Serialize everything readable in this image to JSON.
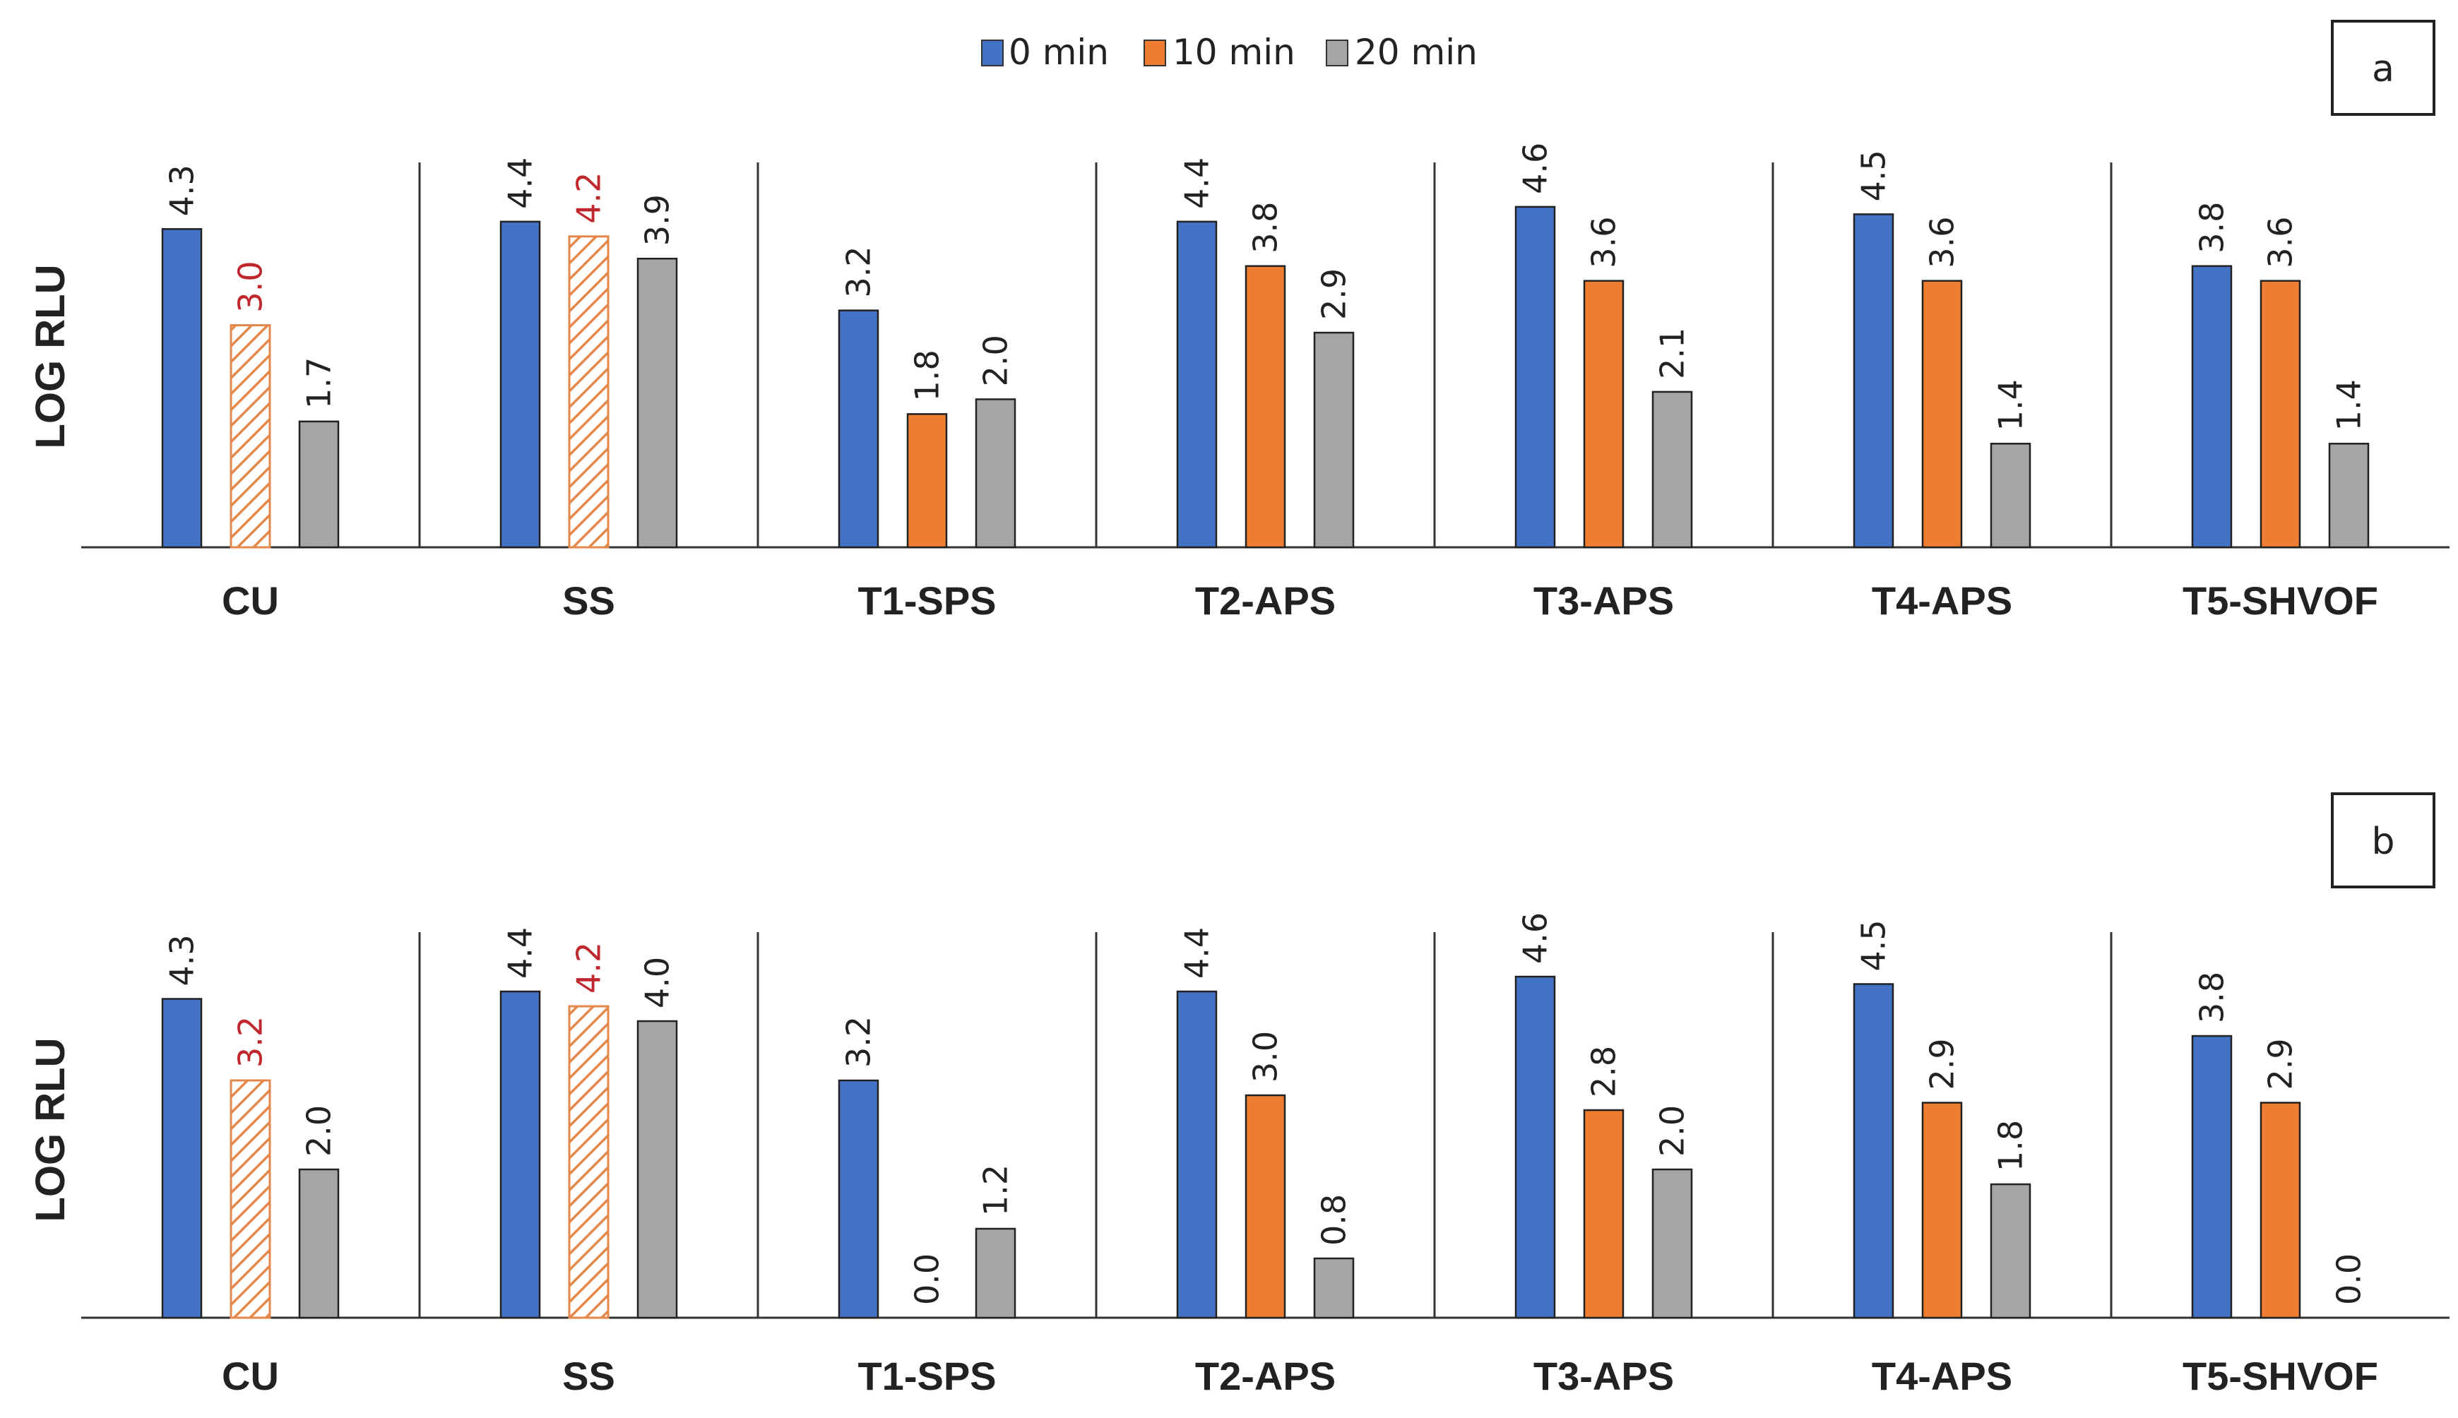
{
  "legend": [
    {
      "label": "0 min",
      "color": "#4472C4"
    },
    {
      "label": "10 min",
      "color": "#ED7D31"
    },
    {
      "label": "20 min",
      "color": "#A5A5A5"
    }
  ],
  "colors": {
    "highlight_label": "#C0272D",
    "hatch": "#E3874A",
    "axis": "#333333",
    "text": "#222222"
  },
  "chart_data": [
    {
      "type": "bar",
      "panel": "a",
      "ylabel": "LOG RLU",
      "ylim": [
        0,
        5.2
      ],
      "categories": [
        "CU",
        "SS",
        "T1-SPS",
        "T2-APS",
        "T3-APS",
        "T4-APS",
        "T5-SHVOF"
      ],
      "series": [
        {
          "name": "0 min",
          "values": [
            4.3,
            4.4,
            3.2,
            4.4,
            4.6,
            4.5,
            3.8
          ]
        },
        {
          "name": "10 min",
          "values": [
            3.0,
            4.2,
            1.8,
            3.8,
            3.6,
            3.6,
            3.6
          ]
        },
        {
          "name": "20 min",
          "values": [
            1.7,
            3.9,
            2.0,
            2.9,
            2.1,
            1.4,
            1.4
          ]
        }
      ],
      "hatched_categories": [
        "CU",
        "SS"
      ]
    },
    {
      "type": "bar",
      "panel": "b",
      "ylabel": "LOG RLU",
      "ylim": [
        0,
        5.2
      ],
      "categories": [
        "CU",
        "SS",
        "T1-SPS",
        "T2-APS",
        "T3-APS",
        "T4-APS",
        "T5-SHVOF"
      ],
      "series": [
        {
          "name": "0 min",
          "values": [
            4.3,
            4.4,
            3.2,
            4.4,
            4.6,
            4.5,
            3.8
          ]
        },
        {
          "name": "10 min",
          "values": [
            3.2,
            4.2,
            0.0,
            3.0,
            2.8,
            2.9,
            2.9
          ]
        },
        {
          "name": "20 min",
          "values": [
            2.0,
            4.0,
            1.2,
            0.8,
            2.0,
            1.8,
            0.0
          ]
        }
      ],
      "hatched_categories": [
        "CU",
        "SS"
      ]
    }
  ]
}
